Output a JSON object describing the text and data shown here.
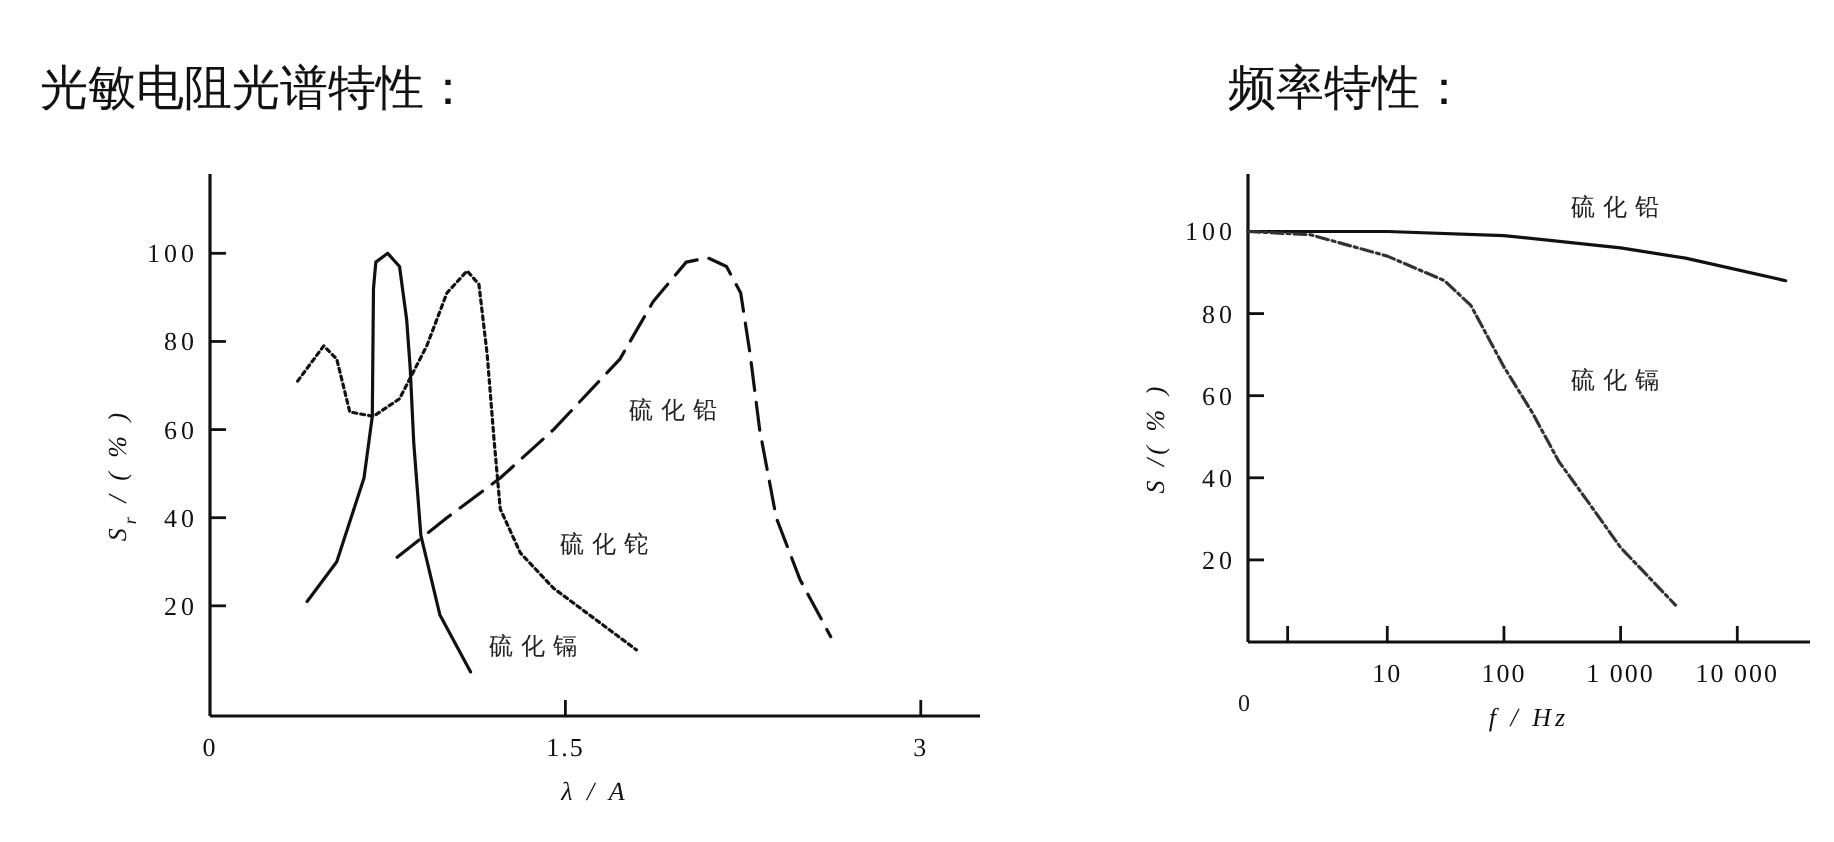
{
  "chart_data": [
    {
      "type": "line",
      "title": "光敏电阻光谱特性：",
      "xlabel": "λ / A",
      "ylabel": "S$_{r}$ / ( % )",
      "xlim": [
        0,
        3.25
      ],
      "ylim": [
        -5,
        118
      ],
      "xticks": [
        0,
        1.5,
        3
      ],
      "yticks": [
        20,
        40,
        60,
        80,
        100
      ],
      "series": [
        {
          "color": "#111111",
          "line_style": "solid",
          "x": [
            0.41,
            0.535,
            0.65,
            0.685,
            0.69,
            0.7,
            0.75,
            0.8,
            0.83,
            0.845,
            0.86,
            0.89,
            0.97,
            1.1
          ],
          "values": [
            21,
            30,
            49,
            63,
            92,
            98,
            100,
            97,
            85,
            74,
            57,
            36,
            18,
            5
          ]
        },
        {
          "color": "#111111",
          "line_style": "dotted",
          "x": [
            0.37,
            0.48,
            0.535,
            0.59,
            0.69,
            0.8,
            0.915,
            1.0,
            1.085,
            1.135,
            1.17,
            1.2,
            1.225,
            1.31,
            1.45,
            1.8
          ],
          "values": [
            71,
            79,
            76,
            64,
            63,
            67,
            79,
            91,
            96,
            93,
            77,
            57,
            42,
            32,
            24,
            10
          ]
        },
        {
          "color": "#111111",
          "line_style": "dashed",
          "x": [
            0.79,
            1.0,
            1.225,
            1.45,
            1.73,
            1.87,
            2.01,
            2.1,
            2.18,
            2.24,
            2.28,
            2.32,
            2.39,
            2.49,
            2.62
          ],
          "values": [
            31,
            40,
            49,
            60,
            76,
            89,
            98,
            99,
            97,
            91,
            77,
            60,
            40,
            26,
            13
          ]
        }
      ],
      "annotations": [
        "硫化铅",
        "硫化铊",
        "硫化镉"
      ]
    },
    {
      "type": "line",
      "title": "频率特性：",
      "xlabel": "f / Hz",
      "ylabel": "S /( % )",
      "log": "x",
      "xlim": [
        0.64,
        42000
      ],
      "ylim": [
        0,
        114
      ],
      "xticks": [
        {
          "value": 1.4,
          "label": null
        },
        10,
        100,
        {
          "value": 1000,
          "label": "1 000"
        },
        {
          "value": 10000,
          "label": "10 000"
        }
      ],
      "yticks": [
        20,
        40,
        60,
        80,
        100
      ],
      "series": [
        {
          "color": "#111111",
          "line_style": "solid",
          "x": [
            0.64,
            10,
            100,
            1000,
            3600,
            26000
          ],
          "values": [
            100,
            100,
            99,
            96,
            93.5,
            88
          ]
        },
        {
          "color": "#333333",
          "line_style": "dashdot",
          "x": [
            0.64,
            2.2,
            10,
            31,
            52,
            100,
            174,
            295,
            500,
            1000,
            2950
          ],
          "values": [
            100,
            99.2,
            94,
            88,
            82,
            67,
            56,
            44,
            35,
            23,
            9
          ]
        }
      ],
      "annotations": [
        "硫化铅",
        "硫化镉",
        "0"
      ]
    }
  ]
}
